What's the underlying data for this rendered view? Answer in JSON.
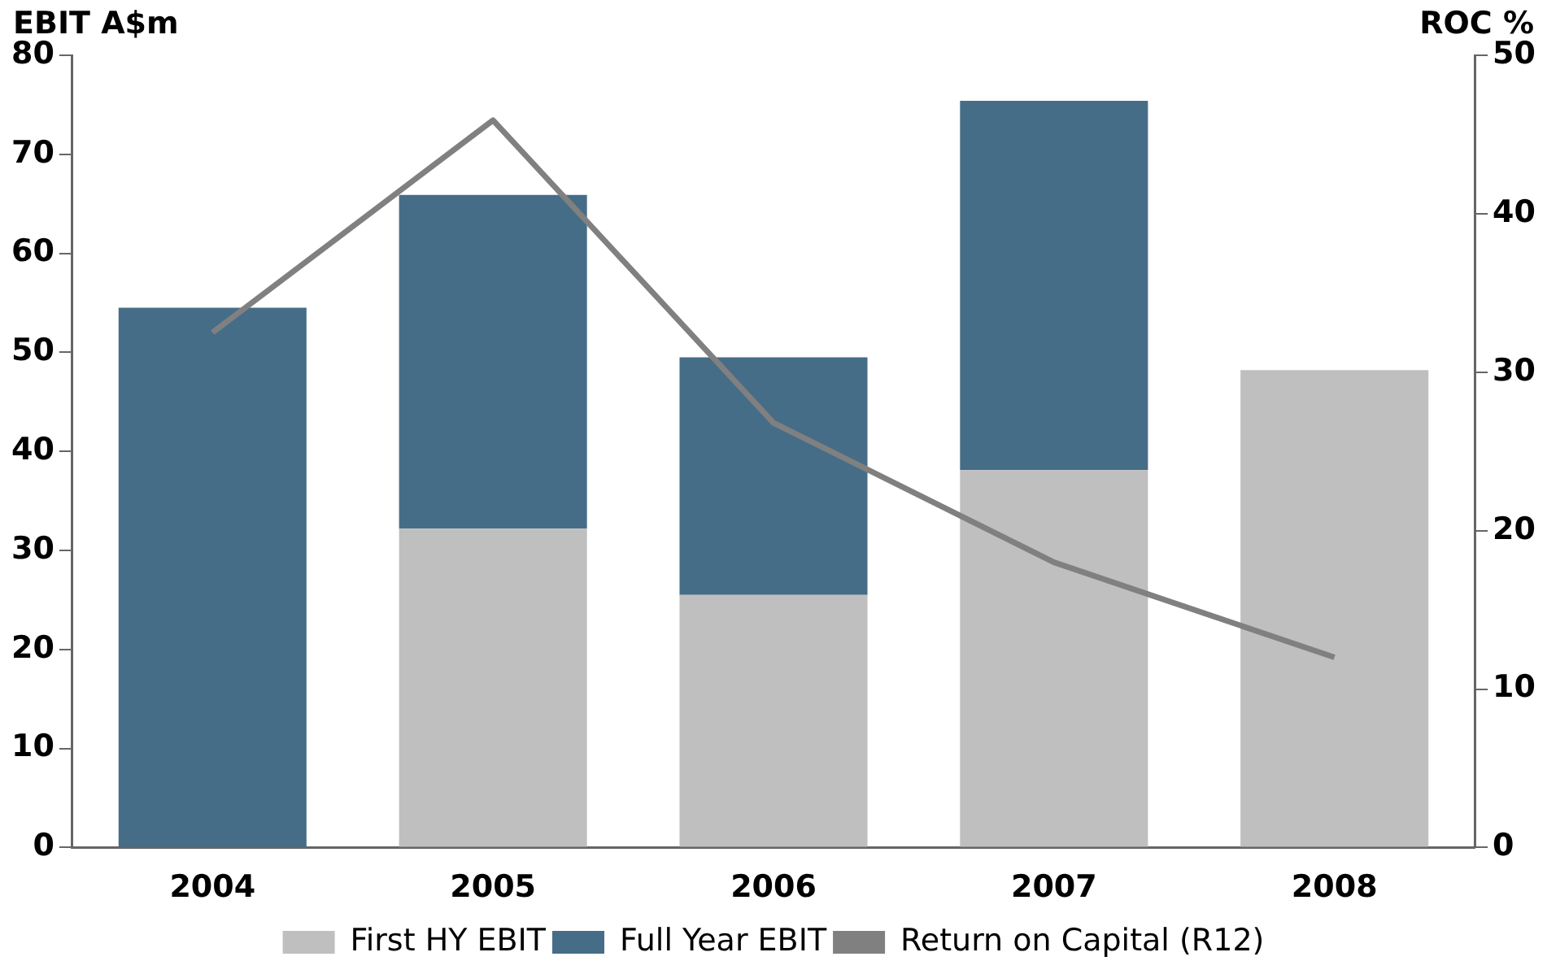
{
  "chart_data": {
    "type": "bar",
    "stacked": true,
    "ylabel": "EBIT A$m",
    "y2label": "ROC %",
    "categories": [
      "2004",
      "2005",
      "2006",
      "2007",
      "2008"
    ],
    "series": [
      {
        "name": "First HY EBIT",
        "color": "#bfbfbf",
        "values": [
          null,
          32.2,
          25.5,
          38.1,
          48.2
        ]
      },
      {
        "name": "Full Year EBIT",
        "color": "#466d87",
        "values": [
          54.5,
          33.7,
          24,
          37.3,
          null
        ]
      },
      {
        "type": "line",
        "axis": "y2",
        "name": "Return on Capital (R12)",
        "color": "#808080",
        "values": [
          32.5,
          45.9,
          26.8,
          18,
          12
        ]
      }
    ],
    "ylim": [
      0,
      80
    ],
    "yticks": [
      0,
      10,
      20,
      30,
      40,
      50,
      60,
      70,
      80
    ],
    "y2lim": [
      0,
      50
    ],
    "y2ticks": [
      0,
      10,
      20,
      30,
      40,
      50
    ],
    "grid": false,
    "legend": "bottom",
    "marker": "none",
    "line_style": "solid"
  }
}
